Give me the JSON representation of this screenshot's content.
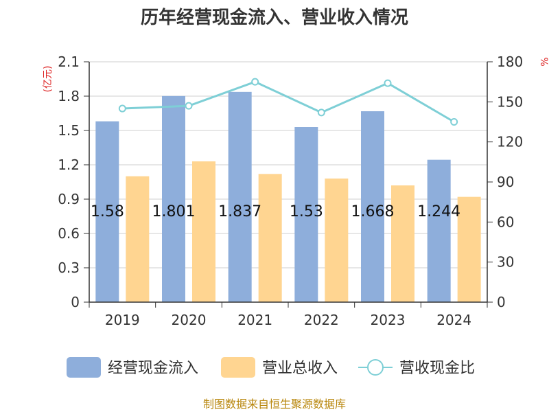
{
  "title": "历年经营现金流入、营业收入情况",
  "source": "制图数据来自恒生聚源数据库",
  "left_unit": "(亿元)",
  "right_unit": "%",
  "colors": {
    "cash_inflow": "#8eaedb",
    "revenue": "#ffd591",
    "ratio": "#7ecfd6",
    "grid": "#cfcfcf",
    "axis": "#333333"
  },
  "chart_data": {
    "type": "bar",
    "categories": [
      "2019",
      "2020",
      "2021",
      "2022",
      "2023",
      "2024"
    ],
    "series": [
      {
        "name": "经营现金流入",
        "type": "bar",
        "axis": "left",
        "values": [
          1.58,
          1.801,
          1.837,
          1.53,
          1.668,
          1.244
        ],
        "data_labels": [
          "1.58",
          "1.801",
          "1.837",
          "1.53",
          "1.668",
          "1.244"
        ]
      },
      {
        "name": "营业总收入",
        "type": "bar",
        "axis": "left",
        "values": [
          1.1,
          1.23,
          1.12,
          1.08,
          1.02,
          0.92
        ]
      },
      {
        "name": "营收现金比",
        "type": "line",
        "axis": "right",
        "values": [
          145,
          147,
          165,
          142,
          164,
          135
        ]
      }
    ],
    "left_axis": {
      "min": 0,
      "max": 2.1,
      "ticks": [
        "0",
        "0.3",
        "0.6",
        "0.9",
        "1.2",
        "1.5",
        "1.8",
        "2.1"
      ]
    },
    "right_axis": {
      "min": 0,
      "max": 180,
      "ticks": [
        "0",
        "30",
        "60",
        "90",
        "120",
        "150",
        "180"
      ]
    },
    "grid": true,
    "legend_position": "bottom"
  }
}
